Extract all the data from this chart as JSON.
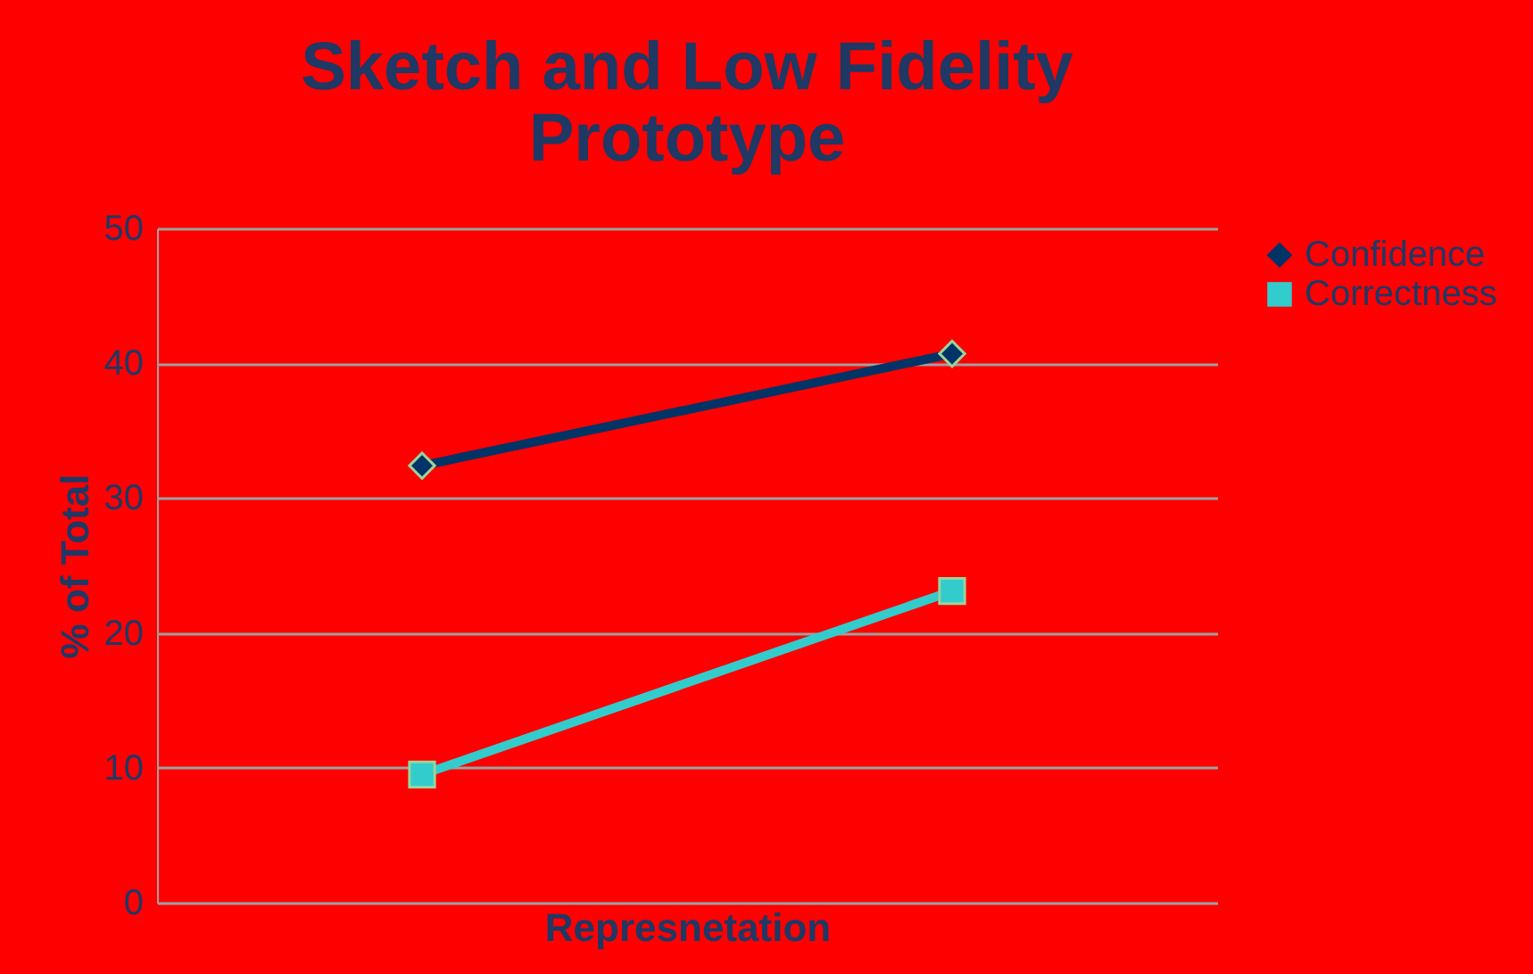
{
  "chart_data": {
    "type": "line",
    "title": "Sketch and Low Fidelity Prototype",
    "xlabel": "Represnetation",
    "ylabel": "% of Total",
    "categories": [
      null,
      null
    ],
    "series": [
      {
        "name": "Confidence",
        "color": "#003366",
        "marker": "diamond",
        "values": [
          32.4,
          40.7
        ]
      },
      {
        "name": "Correctness",
        "color": "#33cccc",
        "marker": "square",
        "values": [
          9.5,
          23.1
        ]
      }
    ],
    "ylim": [
      0,
      50
    ],
    "yticks": [
      0,
      10,
      20,
      30,
      40,
      50
    ],
    "grid": "y",
    "legend": "right"
  }
}
